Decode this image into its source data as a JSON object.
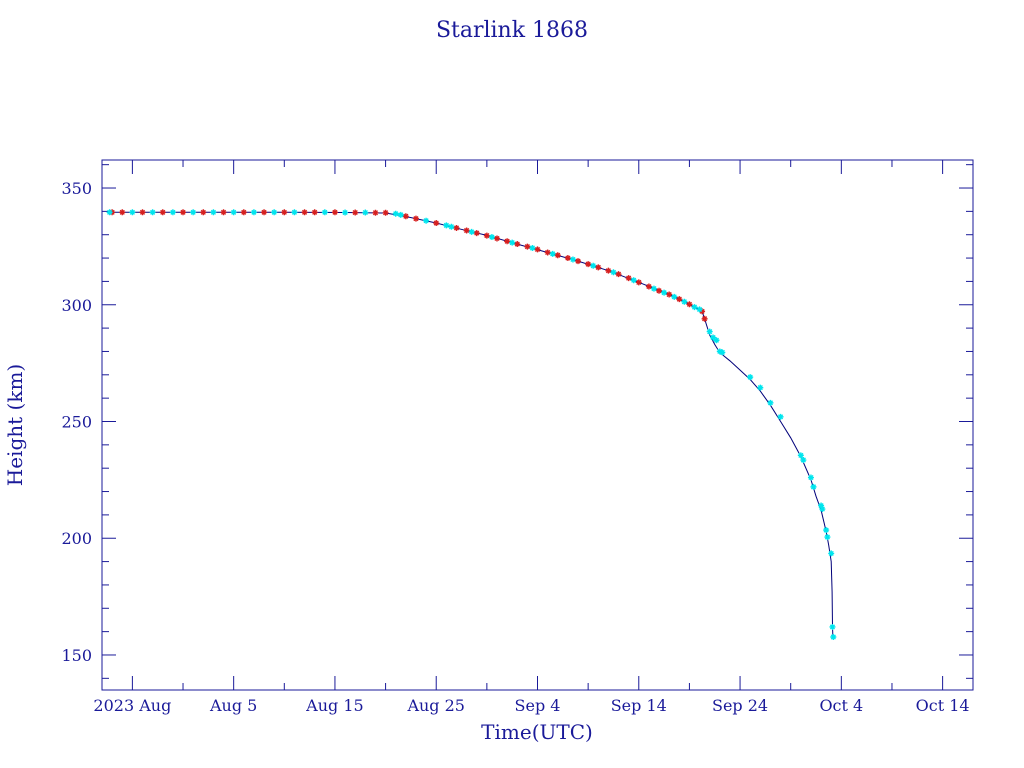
{
  "chart_data": {
    "type": "line",
    "title": "Starlink 1868",
    "xlabel": "Time(UTC)",
    "ylabel": "Height (km)",
    "colors": {
      "axis": "#1a1a99",
      "line": "#00007a",
      "marker_a": "#d62020",
      "marker_b": "#00e5ee"
    },
    "grid": false,
    "xlim": [
      "2023-07-23",
      "2023-10-17"
    ],
    "ylim": [
      135,
      362
    ],
    "x_ticks": [
      {
        "value": "2023-07-26",
        "label": "2023 Aug"
      },
      {
        "value": "2023-08-05",
        "label": "Aug 5"
      },
      {
        "value": "2023-08-15",
        "label": "Aug 15"
      },
      {
        "value": "2023-08-25",
        "label": "Aug 25"
      },
      {
        "value": "2023-09-04",
        "label": "Sep 4"
      },
      {
        "value": "2023-09-14",
        "label": "Sep 14"
      },
      {
        "value": "2023-09-24",
        "label": "Sep 24"
      },
      {
        "value": "2023-10-04",
        "label": "Oct 4"
      },
      {
        "value": "2023-10-14",
        "label": "Oct 14"
      }
    ],
    "y_ticks": [
      150,
      200,
      250,
      300,
      350
    ],
    "series": [
      {
        "points": [
          [
            "2023-07-23T12:00",
            339.6
          ],
          [
            "2023-08-01",
            339.6
          ],
          [
            "2023-08-10",
            339.6
          ],
          [
            "2023-08-16",
            339.5
          ],
          [
            "2023-08-20",
            339.3
          ],
          [
            "2023-08-22",
            337.8
          ],
          [
            "2023-08-25",
            335.0
          ],
          [
            "2023-08-27",
            332.8
          ],
          [
            "2023-08-30",
            329.7
          ],
          [
            "2023-09-02",
            326.0
          ],
          [
            "2023-09-05",
            322.4
          ],
          [
            "2023-09-08",
            318.7
          ],
          [
            "2023-09-11",
            314.6
          ],
          [
            "2023-09-14",
            309.6
          ],
          [
            "2023-09-17",
            304.4
          ],
          [
            "2023-09-19",
            300.2
          ],
          [
            "2023-09-20T06:00",
            297.2
          ],
          [
            "2023-09-20T12:00",
            294.0
          ],
          [
            "2023-09-21",
            287.0
          ],
          [
            "2023-09-21T12:00",
            283.0
          ],
          [
            "2023-09-22",
            279.5
          ],
          [
            "2023-09-23",
            276.0
          ],
          [
            "2023-09-24",
            272.0
          ],
          [
            "2023-09-25",
            268.0
          ],
          [
            "2023-09-26",
            263.0
          ],
          [
            "2023-09-27",
            257.0
          ],
          [
            "2023-09-28",
            250.0
          ],
          [
            "2023-09-29",
            243.0
          ],
          [
            "2023-09-30",
            235.0
          ],
          [
            "2023-10-01",
            225.0
          ],
          [
            "2023-10-01T12:00",
            218.0
          ],
          [
            "2023-10-02",
            212.0
          ],
          [
            "2023-10-02T12:00",
            203.0
          ],
          [
            "2023-10-02T18:00",
            197.0
          ],
          [
            "2023-10-03",
            190.0
          ],
          [
            "2023-10-03T02:00",
            177.0
          ],
          [
            "2023-10-03T03:00",
            162.0
          ],
          [
            "2023-10-03T04:00",
            157.7
          ]
        ],
        "markers_red": [
          [
            "2023-07-24",
            339.6
          ],
          [
            "2023-07-25",
            339.6
          ],
          [
            "2023-07-27",
            339.6
          ],
          [
            "2023-07-29",
            339.6
          ],
          [
            "2023-07-31",
            339.6
          ],
          [
            "2023-08-02",
            339.6
          ],
          [
            "2023-08-04",
            339.6
          ],
          [
            "2023-08-06",
            339.6
          ],
          [
            "2023-08-08",
            339.6
          ],
          [
            "2023-08-10",
            339.6
          ],
          [
            "2023-08-12",
            339.6
          ],
          [
            "2023-08-13",
            339.6
          ],
          [
            "2023-08-15",
            339.6
          ],
          [
            "2023-08-17",
            339.5
          ],
          [
            "2023-08-19",
            339.4
          ],
          [
            "2023-08-20",
            339.4
          ],
          [
            "2023-08-22",
            337.9
          ],
          [
            "2023-08-23",
            336.9
          ],
          [
            "2023-08-25",
            335.0
          ],
          [
            "2023-08-27",
            332.9
          ],
          [
            "2023-08-28",
            331.8
          ],
          [
            "2023-08-29",
            330.7
          ],
          [
            "2023-08-30",
            329.6
          ],
          [
            "2023-08-31",
            328.4
          ],
          [
            "2023-09-01",
            327.2
          ],
          [
            "2023-09-02",
            326.0
          ],
          [
            "2023-09-03",
            324.9
          ],
          [
            "2023-09-04",
            323.7
          ],
          [
            "2023-09-05",
            322.4
          ],
          [
            "2023-09-06",
            321.2
          ],
          [
            "2023-09-07",
            320.0
          ],
          [
            "2023-09-08",
            318.7
          ],
          [
            "2023-09-09",
            317.4
          ],
          [
            "2023-09-10",
            316.0
          ],
          [
            "2023-09-11",
            314.6
          ],
          [
            "2023-09-12",
            313.1
          ],
          [
            "2023-09-13",
            311.4
          ],
          [
            "2023-09-14",
            309.6
          ],
          [
            "2023-09-15",
            307.8
          ],
          [
            "2023-09-16",
            306.0
          ],
          [
            "2023-09-17",
            304.4
          ],
          [
            "2023-09-18",
            302.4
          ],
          [
            "2023-09-19",
            300.2
          ],
          [
            "2023-09-20T06:00",
            297.2
          ],
          [
            "2023-09-20T12:00",
            294.0
          ]
        ],
        "markers_cyan": [
          [
            "2023-07-23T18:00",
            339.6
          ],
          [
            "2023-07-26",
            339.6
          ],
          [
            "2023-07-28",
            339.6
          ],
          [
            "2023-07-30",
            339.6
          ],
          [
            "2023-08-01",
            339.6
          ],
          [
            "2023-08-03",
            339.6
          ],
          [
            "2023-08-05",
            339.6
          ],
          [
            "2023-08-07",
            339.6
          ],
          [
            "2023-08-09",
            339.6
          ],
          [
            "2023-08-11",
            339.6
          ],
          [
            "2023-08-14",
            339.6
          ],
          [
            "2023-08-16",
            339.5
          ],
          [
            "2023-08-18",
            339.5
          ],
          [
            "2023-08-21",
            339.0
          ],
          [
            "2023-08-21T12:00",
            338.5
          ],
          [
            "2023-08-24",
            336.0
          ],
          [
            "2023-08-26",
            334.0
          ],
          [
            "2023-08-26T12:00",
            333.4
          ],
          [
            "2023-08-28T12:00",
            331.2
          ],
          [
            "2023-08-30T12:00",
            329.0
          ],
          [
            "2023-09-01T12:00",
            326.6
          ],
          [
            "2023-09-03T12:00",
            324.3
          ],
          [
            "2023-09-05T12:00",
            321.8
          ],
          [
            "2023-09-07T12:00",
            319.4
          ],
          [
            "2023-09-09T12:00",
            316.7
          ],
          [
            "2023-09-11T12:00",
            313.9
          ],
          [
            "2023-09-13T12:00",
            310.5
          ],
          [
            "2023-09-15T12:00",
            306.9
          ],
          [
            "2023-09-16T12:00",
            305.2
          ],
          [
            "2023-09-17T12:00",
            303.4
          ],
          [
            "2023-09-18T12:00",
            301.3
          ],
          [
            "2023-09-19T12:00",
            299.0
          ],
          [
            "2023-09-20",
            298.0
          ],
          [
            "2023-09-21",
            288.5
          ],
          [
            "2023-09-21T08:00",
            286.0
          ],
          [
            "2023-09-21T16:00",
            284.8
          ],
          [
            "2023-09-22",
            280.0
          ],
          [
            "2023-09-22T06:00",
            279.6
          ],
          [
            "2023-09-25",
            269.0
          ],
          [
            "2023-09-26",
            264.5
          ],
          [
            "2023-09-27",
            258.0
          ],
          [
            "2023-09-28",
            252.0
          ],
          [
            "2023-09-30",
            235.5
          ],
          [
            "2023-09-30T06:00",
            233.5
          ],
          [
            "2023-10-01",
            226.0
          ],
          [
            "2023-10-01T06:00",
            222.0
          ],
          [
            "2023-10-02",
            214.0
          ],
          [
            "2023-10-02T03:00",
            212.5
          ],
          [
            "2023-10-02T12:00",
            203.5
          ],
          [
            "2023-10-02T15:00",
            200.5
          ],
          [
            "2023-10-03",
            193.5
          ],
          [
            "2023-10-03T03:00",
            162.0
          ],
          [
            "2023-10-03T05:00",
            157.7
          ]
        ]
      }
    ]
  }
}
